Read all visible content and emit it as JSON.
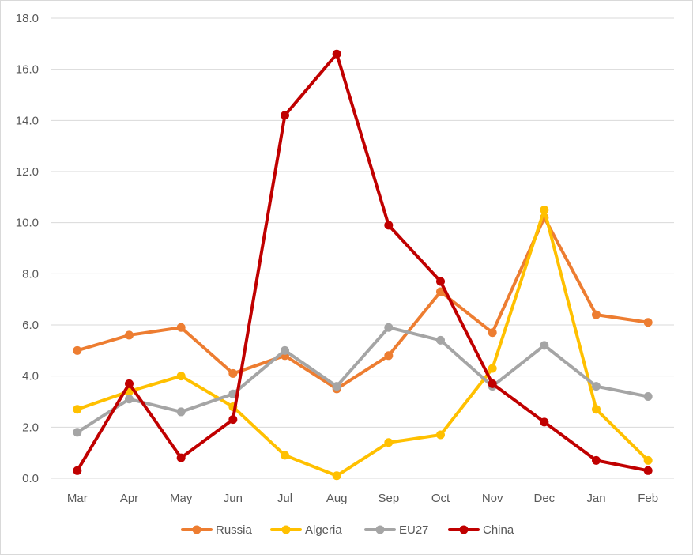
{
  "chart_data": {
    "type": "line",
    "title": "",
    "xlabel": "",
    "ylabel": "",
    "categories": [
      "Mar",
      "Apr",
      "May",
      "Jun",
      "Jul",
      "Aug",
      "Sep",
      "Oct",
      "Nov",
      "Dec",
      "Jan",
      "Feb"
    ],
    "ylim": [
      0,
      18
    ],
    "yticks": [
      "0.0",
      "2.0",
      "4.0",
      "6.0",
      "8.0",
      "10.0",
      "12.0",
      "14.0",
      "16.0",
      "18.0"
    ],
    "grid": true,
    "legend_position": "bottom",
    "series": [
      {
        "name": "Russia",
        "color": "#ED7D31",
        "values": [
          5.0,
          5.6,
          5.9,
          4.1,
          4.8,
          3.5,
          4.8,
          7.3,
          5.7,
          10.2,
          6.4,
          6.1
        ]
      },
      {
        "name": "Algeria",
        "color": "#FFC000",
        "values": [
          2.7,
          3.4,
          4.0,
          2.8,
          0.9,
          0.1,
          1.4,
          1.7,
          4.3,
          10.5,
          2.7,
          0.7
        ]
      },
      {
        "name": "EU27",
        "color": "#A5A5A5",
        "values": [
          1.8,
          3.1,
          2.6,
          3.3,
          5.0,
          3.6,
          5.9,
          5.4,
          3.6,
          5.2,
          3.6,
          3.2
        ]
      },
      {
        "name": "China",
        "color": "#C00000",
        "values": [
          0.3,
          3.7,
          0.8,
          2.3,
          14.2,
          16.6,
          9.9,
          7.7,
          3.7,
          2.2,
          0.7,
          0.3
        ]
      }
    ]
  }
}
